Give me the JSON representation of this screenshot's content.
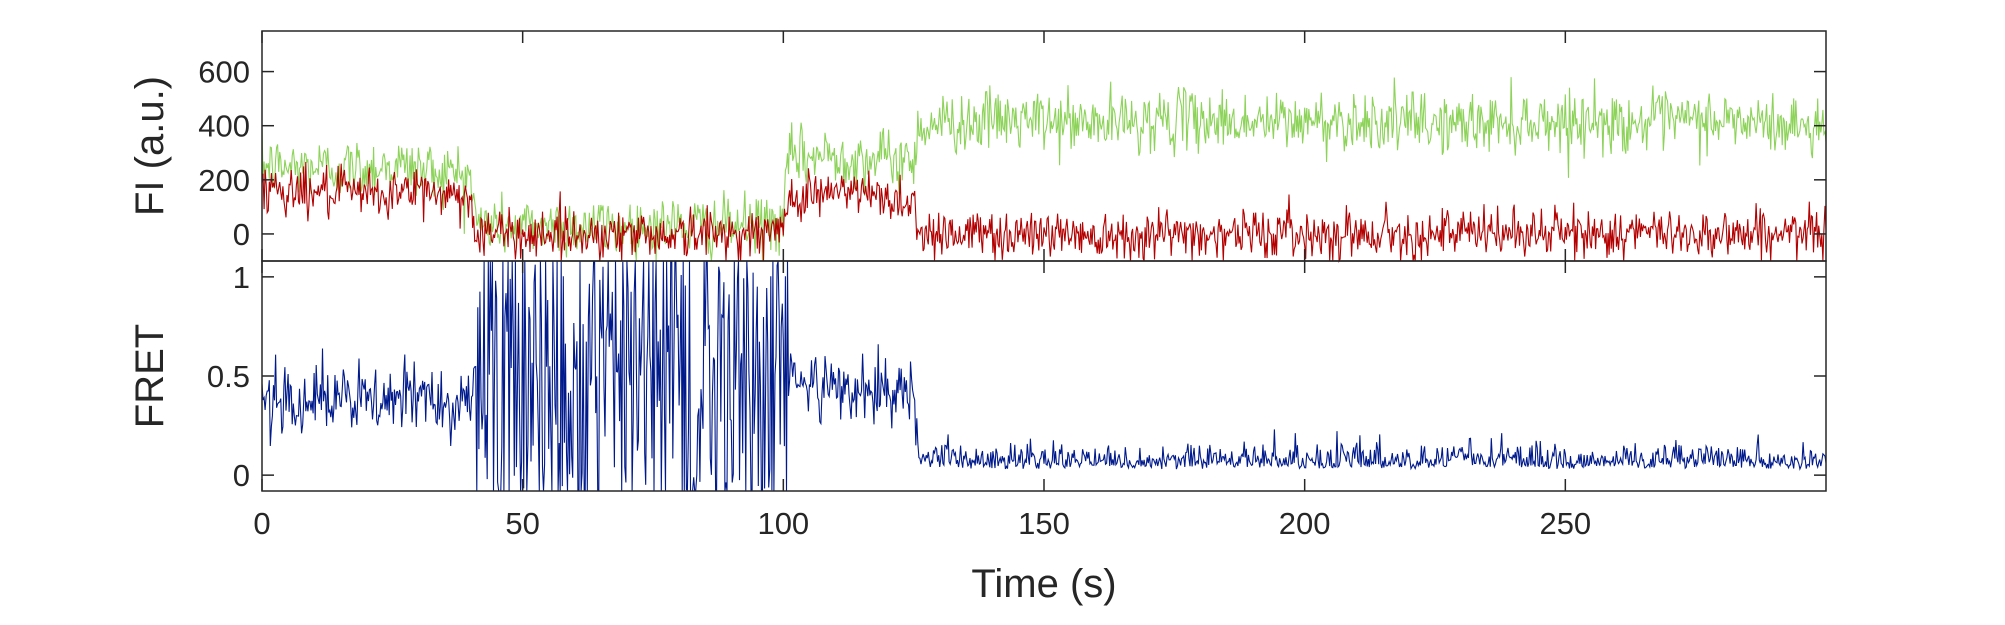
{
  "chart_data": [
    {
      "type": "line",
      "panel": "fluorescence",
      "ylabel": "FI (a.u.)",
      "xlim": [
        0,
        300
      ],
      "ylim": [
        -100,
        750
      ],
      "yticks": [
        0,
        200,
        400,
        600
      ],
      "ytick_labels": [
        "0",
        "200",
        "400",
        "600"
      ],
      "series": [
        {
          "color": "#8dd35a",
          "x": [
            0,
            5,
            10,
            15,
            20,
            25,
            30,
            35,
            40,
            41,
            45,
            50,
            55,
            60,
            65,
            70,
            75,
            80,
            85,
            90,
            95,
            100,
            101,
            105,
            110,
            115,
            120,
            125,
            126,
            130,
            140,
            150,
            160,
            170,
            180,
            190,
            200,
            210,
            220,
            230,
            240,
            250,
            260,
            270,
            280,
            290,
            300
          ],
          "y": [
            250,
            245,
            250,
            240,
            245,
            255,
            240,
            230,
            220,
            40,
            30,
            25,
            35,
            30,
            28,
            25,
            30,
            32,
            28,
            30,
            35,
            40,
            280,
            285,
            290,
            280,
            275,
            270,
            400,
            410,
            420,
            415,
            405,
            420,
            425,
            410,
            415,
            420,
            410,
            405,
            415,
            420,
            410,
            415,
            420,
            400,
            395
          ]
        },
        {
          "color": "#b30000",
          "x": [
            0,
            5,
            10,
            15,
            20,
            25,
            30,
            35,
            40,
            41,
            45,
            50,
            55,
            60,
            65,
            70,
            75,
            80,
            85,
            90,
            95,
            100,
            101,
            105,
            110,
            115,
            120,
            125,
            126,
            130,
            140,
            150,
            160,
            170,
            180,
            190,
            200,
            210,
            220,
            230,
            240,
            250,
            260,
            270,
            280,
            290,
            300
          ],
          "y": [
            175,
            165,
            155,
            150,
            145,
            150,
            160,
            150,
            130,
            5,
            0,
            0,
            5,
            0,
            0,
            2,
            0,
            0,
            3,
            0,
            2,
            5,
            140,
            150,
            155,
            150,
            130,
            120,
            5,
            5,
            0,
            3,
            0,
            2,
            0,
            5,
            0,
            3,
            2,
            0,
            5,
            3,
            0,
            2,
            5,
            0,
            0
          ]
        }
      ]
    },
    {
      "type": "line",
      "panel": "fret",
      "ylabel": "FRET",
      "xlabel": "Time (s)",
      "xlim": [
        0,
        300
      ],
      "ylim": [
        -0.08,
        1.08
      ],
      "xticks": [
        0,
        50,
        100,
        150,
        200,
        250
      ],
      "xtick_labels": [
        "0",
        "50",
        "100",
        "150",
        "200",
        "250"
      ],
      "yticks": [
        0,
        0.5,
        1
      ],
      "ytick_labels": [
        "0",
        "0.5",
        "1"
      ],
      "series": [
        {
          "color": "#001a8c",
          "x": [
            0,
            5,
            10,
            15,
            20,
            25,
            30,
            35,
            40,
            41,
            45,
            50,
            55,
            60,
            65,
            70,
            75,
            80,
            85,
            90,
            95,
            100,
            101,
            105,
            110,
            115,
            120,
            125,
            126,
            130,
            140,
            150,
            160,
            170,
            180,
            190,
            200,
            210,
            220,
            230,
            240,
            250,
            260,
            270,
            280,
            290,
            300
          ],
          "y": [
            0.42,
            0.4,
            0.38,
            0.38,
            0.37,
            0.37,
            0.4,
            0.39,
            0.37,
            0.5,
            0.5,
            0.5,
            0.5,
            0.5,
            0.5,
            0.5,
            0.5,
            0.5,
            0.5,
            0.5,
            0.5,
            0.5,
            0.45,
            0.46,
            0.44,
            0.45,
            0.44,
            0.42,
            0.05,
            0.06,
            0.05,
            0.05,
            0.06,
            0.05,
            0.05,
            0.06,
            0.05,
            0.06,
            0.05,
            0.06,
            0.06,
            0.05,
            0.06,
            0.05,
            0.06,
            0.05,
            0.05
          ]
        }
      ]
    }
  ]
}
